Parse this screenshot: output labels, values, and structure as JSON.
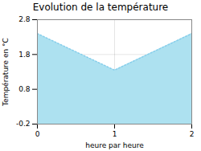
{
  "chart_data": {
    "type": "area",
    "title": "Evolution de la température",
    "xlabel": "heure par heure",
    "ylabel": "Température en °C",
    "x": [
      0,
      1,
      2
    ],
    "series": [
      {
        "type": "area",
        "color": "#ADE1F0",
        "values": [
          2.4,
          1.35,
          2.4
        ]
      },
      {
        "type": "line",
        "color": "#87CEEB",
        "line_style": "dotted",
        "values": [
          2.4,
          1.35,
          2.4
        ]
      }
    ],
    "xlim": [
      0,
      2
    ],
    "xticks": [
      0,
      1,
      2
    ],
    "ylim": [
      -0.2,
      2.8
    ],
    "yticks": [
      -0.2,
      0.8,
      1.8,
      2.8
    ],
    "grid": true
  }
}
